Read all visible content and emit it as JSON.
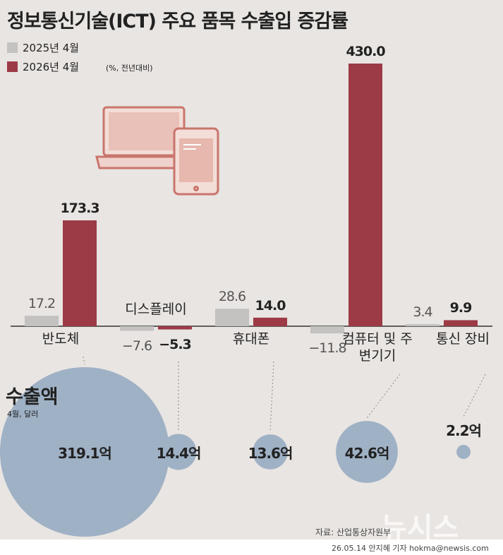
{
  "chart_data": {
    "type": "bar",
    "title": "정보통신기술(ICT) 주요 품목 수출입 증감률",
    "note": "(%, 전년대비)",
    "categories": [
      "반도체",
      "디스플레이",
      "휴대폰",
      "컴퓨터 및 주변기기",
      "통신 장비"
    ],
    "series": [
      {
        "name": "2025년 4월",
        "color": "#c3c2c1",
        "values": [
          17.2,
          -7.6,
          28.6,
          -11.8,
          3.4
        ],
        "value_labels": [
          "17.2",
          "−7.6",
          "28.6",
          "−11.8",
          "3.4"
        ]
      },
      {
        "name": "2026년 4월",
        "color": "#9c3a46",
        "values": [
          173.3,
          -5.3,
          14.0,
          430.0,
          9.9
        ],
        "value_labels": [
          "173.3",
          "−5.3",
          "14.0",
          "430.0",
          "9.9"
        ]
      }
    ],
    "bubbles": {
      "title": "수출액",
      "subtitle": "4월, 달러",
      "color": "#9fb1c5",
      "values": [
        319.1,
        14.4,
        13.6,
        42.6,
        2.2
      ],
      "value_labels": [
        "319.1억",
        "14.4억",
        "13.6억",
        "42.6억",
        "2.2억"
      ]
    },
    "source": "자료: 산업통상자원부",
    "credit": "26.05.14 안지혜 기자 hokma@newsis.com",
    "watermark": "뉴시스"
  }
}
